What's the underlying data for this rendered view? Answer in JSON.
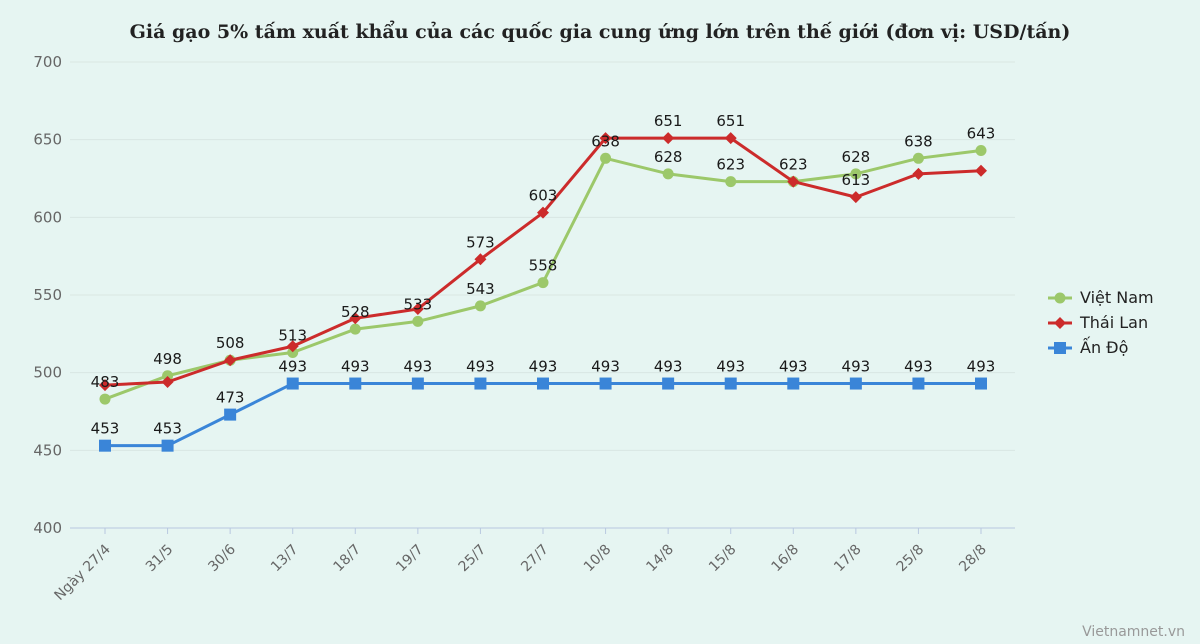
{
  "chart_data": {
    "type": "line",
    "title": "Giá gạo 5% tấm xuất khẩu của các quốc gia cung ứng lớn trên thế giới (đơn vị: USD/tấn)",
    "categories": [
      "Ngày 27/4",
      "31/5",
      "30/6",
      "13/7",
      "18/7",
      "19/7",
      "25/7",
      "27/7",
      "10/8",
      "14/8",
      "15/8",
      "16/8",
      "17/8",
      "25/8",
      "28/8"
    ],
    "ylim": [
      400,
      700
    ],
    "yticks": [
      400,
      450,
      500,
      550,
      600,
      650,
      700
    ],
    "grid": true,
    "legend_position": "right",
    "series": [
      {
        "name": "Việt Nam",
        "color": "#9cc86a",
        "marker": "circle",
        "values": [
          483,
          498,
          508,
          513,
          528,
          533,
          543,
          558,
          638,
          628,
          623,
          623,
          628,
          638,
          643
        ]
      },
      {
        "name": "Thái Lan",
        "color": "#cc2b2b",
        "marker": "diamond",
        "values": [
          492,
          494,
          508,
          517,
          535,
          541,
          573,
          603,
          651,
          651,
          651,
          623,
          613,
          628,
          630
        ]
      },
      {
        "name": "Ấn Độ",
        "color": "#3a85d8",
        "marker": "square",
        "values": [
          453,
          453,
          473,
          493,
          493,
          493,
          493,
          493,
          493,
          493,
          493,
          493,
          493,
          493,
          493
        ]
      }
    ],
    "labels": [
      {
        "text": "483",
        "index": 0,
        "value": 483
      },
      {
        "text": "498",
        "index": 1,
        "value": 498
      },
      {
        "text": "508",
        "index": 2,
        "value": 508
      },
      {
        "text": "513",
        "index": 3,
        "value": 513
      },
      {
        "text": "528",
        "index": 4,
        "value": 528
      },
      {
        "text": "533",
        "index": 5,
        "value": 533
      },
      {
        "text": "543",
        "index": 6,
        "value": 543
      },
      {
        "text": "573",
        "index": 6,
        "value": 573
      },
      {
        "text": "558",
        "index": 7,
        "value": 558
      },
      {
        "text": "603",
        "index": 7,
        "value": 603
      },
      {
        "text": "638",
        "index": 8,
        "value": 638
      },
      {
        "text": "651",
        "index": 9,
        "value": 651
      },
      {
        "text": "628",
        "index": 9,
        "value": 628
      },
      {
        "text": "651",
        "index": 10,
        "value": 651
      },
      {
        "text": "623",
        "index": 10,
        "value": 623
      },
      {
        "text": "623",
        "index": 11,
        "value": 623
      },
      {
        "text": "628",
        "index": 12,
        "value": 628
      },
      {
        "text": "613",
        "index": 12,
        "value": 613
      },
      {
        "text": "638",
        "index": 13,
        "value": 638
      },
      {
        "text": "643",
        "index": 14,
        "value": 643
      },
      {
        "text": "453",
        "index": 0,
        "value": 453
      },
      {
        "text": "453",
        "index": 1,
        "value": 453
      },
      {
        "text": "473",
        "index": 2,
        "value": 473
      },
      {
        "text": "493",
        "index": 3,
        "value": 493
      },
      {
        "text": "493",
        "index": 4,
        "value": 493
      },
      {
        "text": "493",
        "index": 5,
        "value": 493
      },
      {
        "text": "493",
        "index": 6,
        "value": 493
      },
      {
        "text": "493",
        "index": 7,
        "value": 493
      },
      {
        "text": "493",
        "index": 8,
        "value": 493
      },
      {
        "text": "493",
        "index": 9,
        "value": 493
      },
      {
        "text": "493",
        "index": 10,
        "value": 493
      },
      {
        "text": "493",
        "index": 11,
        "value": 493
      },
      {
        "text": "493",
        "index": 12,
        "value": 493
      },
      {
        "text": "493",
        "index": 13,
        "value": 493
      },
      {
        "text": "493",
        "index": 14,
        "value": 493
      }
    ]
  },
  "credit": "Vietnamnet.vn"
}
